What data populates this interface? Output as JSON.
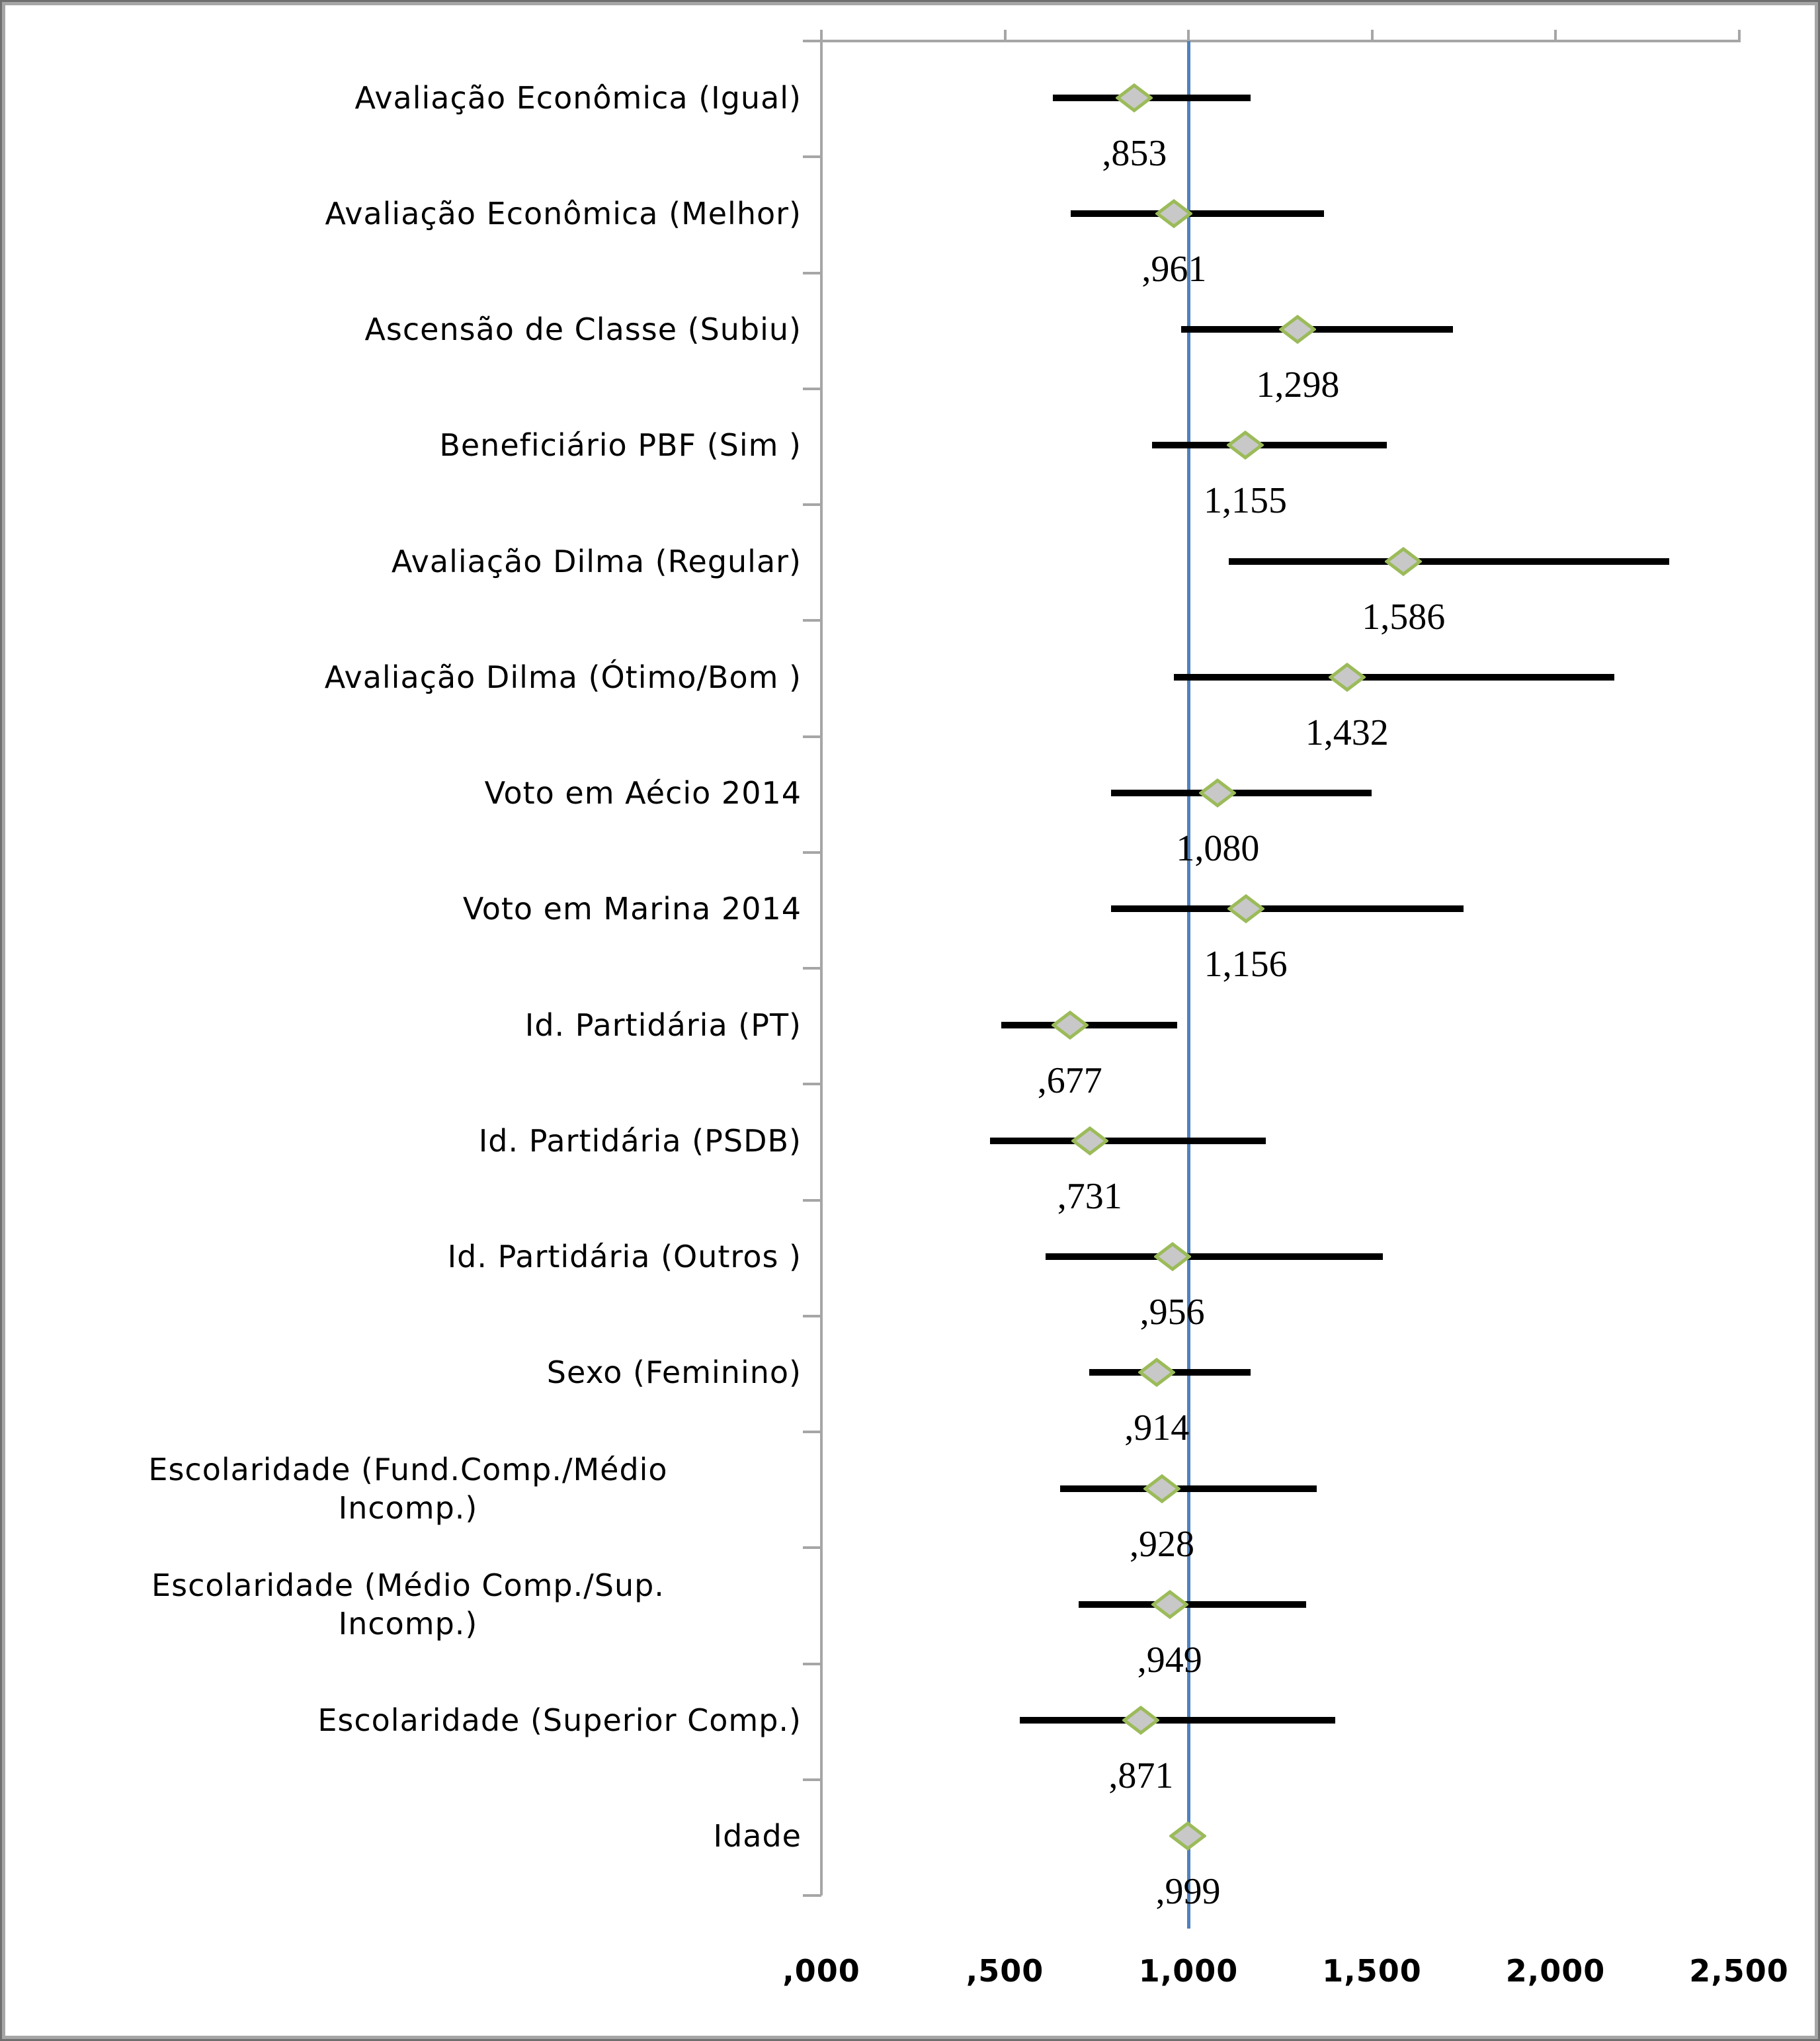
{
  "chart_data": {
    "type": "scatter",
    "subtype": "forest-plot-odds-ratios-with-ci-bars",
    "title": "",
    "xlabel": "",
    "ylabel": "",
    "grid": false,
    "legend": false,
    "axis_color": "#A6A6A6",
    "error_bar_color": "#000000",
    "marker": {
      "shape": "diamond",
      "fill": "#C8C8C8",
      "stroke": "#9BBB59"
    },
    "reference_line": {
      "value": 1.0,
      "color": "#4F81BD"
    },
    "x_axis": {
      "range": [
        0,
        2.5
      ],
      "tick_values": [
        0,
        0.5,
        1.0,
        1.5,
        2.0,
        2.5
      ],
      "tick_labels": [
        ",000",
        ",500",
        "1,000",
        "1,500",
        "2,000",
        "2,500"
      ]
    },
    "rows": [
      {
        "label": "Avaliação Econômica (Igual)",
        "value": 0.853,
        "value_label": ",853",
        "ci_low": 0.63,
        "ci_high": 1.17
      },
      {
        "label": "Avaliação Econômica (Melhor)",
        "value": 0.961,
        "value_label": ",961",
        "ci_low": 0.68,
        "ci_high": 1.37
      },
      {
        "label": "Ascensão de Classe (Subiu)",
        "value": 1.298,
        "value_label": "1,298",
        "ci_low": 0.98,
        "ci_high": 1.72
      },
      {
        "label": "Beneficiário PBF (Sim )",
        "value": 1.155,
        "value_label": "1,155",
        "ci_low": 0.9,
        "ci_high": 1.54
      },
      {
        "label": "Avaliação Dilma (Regular)",
        "value": 1.586,
        "value_label": "1,586",
        "ci_low": 1.11,
        "ci_high": 2.31
      },
      {
        "label": "Avaliação Dilma (Ótimo/Bom )",
        "value": 1.432,
        "value_label": "1,432",
        "ci_low": 0.96,
        "ci_high": 2.16
      },
      {
        "label": "Voto em Aécio 2014",
        "value": 1.08,
        "value_label": "1,080",
        "ci_low": 0.79,
        "ci_high": 1.5
      },
      {
        "label": "Voto em Marina 2014",
        "value": 1.156,
        "value_label": "1,156",
        "ci_low": 0.79,
        "ci_high": 1.75
      },
      {
        "label": "Id. Partidária (PT)",
        "value": 0.677,
        "value_label": ",677",
        "ci_low": 0.49,
        "ci_high": 0.97
      },
      {
        "label": "Id. Partidária (PSDB)",
        "value": 0.731,
        "value_label": ",731",
        "ci_low": 0.46,
        "ci_high": 1.21
      },
      {
        "label": "Id. Partidária (Outros )",
        "value": 0.956,
        "value_label": ",956",
        "ci_low": 0.61,
        "ci_high": 1.53
      },
      {
        "label": "Sexo (Feminino)",
        "value": 0.914,
        "value_label": ",914",
        "ci_low": 0.73,
        "ci_high": 1.17
      },
      {
        "label": "Escolaridade (Fund.Comp./Médio\nIncomp.)",
        "value": 0.928,
        "value_label": ",928",
        "ci_low": 0.65,
        "ci_high": 1.35
      },
      {
        "label": "Escolaridade (Médio Comp./Sup.\nIncomp.)",
        "value": 0.949,
        "value_label": ",949",
        "ci_low": 0.7,
        "ci_high": 1.32
      },
      {
        "label": "Escolaridade (Superior Comp.)",
        "value": 0.871,
        "value_label": ",871",
        "ci_low": 0.54,
        "ci_high": 1.4
      },
      {
        "label": "Idade",
        "value": 0.999,
        "value_label": ",999",
        "ci_low": 0.97,
        "ci_high": 1.03
      }
    ]
  }
}
